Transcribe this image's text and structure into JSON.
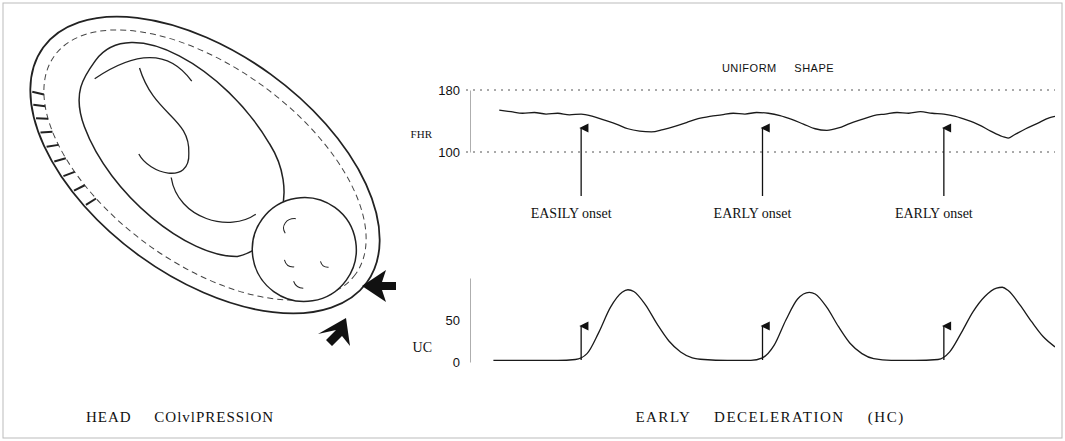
{
  "chart_data": [
    {
      "type": "line",
      "title": "UNIFORM SHAPE",
      "ylabel": "FHR",
      "color": "#1a1a1a",
      "x": [
        5,
        7,
        9,
        11,
        13,
        15,
        17,
        19,
        21,
        23,
        25,
        27,
        29,
        31,
        33,
        35,
        37,
        39,
        41,
        43,
        45,
        47,
        49,
        51,
        53,
        55,
        57,
        59,
        61,
        63,
        65,
        67,
        69,
        71,
        73,
        75,
        77,
        79,
        81,
        83,
        85,
        87,
        89,
        91,
        92,
        93,
        95,
        97,
        99,
        100
      ],
      "values": [
        154,
        152,
        150,
        151,
        149,
        150,
        148,
        149,
        146,
        141,
        136,
        130,
        127,
        126,
        129,
        133,
        138,
        143,
        146,
        148,
        150,
        149,
        151,
        150,
        147,
        142,
        136,
        130,
        128,
        131,
        137,
        142,
        147,
        149,
        151,
        150,
        152,
        150,
        149,
        146,
        141,
        135,
        127,
        120,
        118,
        122,
        130,
        137,
        144,
        146
      ],
      "xlim": [
        0,
        100
      ],
      "ylim": [
        100,
        180
      ],
      "yticks": [
        100,
        180
      ],
      "grid": true,
      "tick_labels": "y",
      "annotations": [
        {
          "text": "EASILY onset",
          "x": 19
        },
        {
          "text": "EARLY onset",
          "x": 50
        },
        {
          "text": "EARLY onset",
          "x": 81
        }
      ]
    },
    {
      "type": "line",
      "ylabel": "UC",
      "color": "#1a1a1a",
      "x": [
        4,
        5,
        10,
        15,
        18,
        20,
        22,
        24,
        26,
        27,
        28,
        30,
        32,
        34,
        36,
        38,
        40,
        44,
        48,
        50,
        52,
        54,
        56,
        58,
        59,
        61,
        63,
        65,
        67,
        69,
        72,
        76,
        80,
        82,
        84,
        86,
        88,
        90,
        91,
        92,
        94,
        96,
        98,
        100
      ],
      "values": [
        2,
        2,
        2,
        2,
        3,
        10,
        35,
        65,
        83,
        86,
        84,
        68,
        45,
        25,
        12,
        5,
        3,
        2,
        2,
        5,
        20,
        50,
        75,
        83,
        81,
        65,
        42,
        22,
        10,
        4,
        2,
        2,
        3,
        12,
        35,
        60,
        78,
        88,
        89,
        85,
        68,
        48,
        30,
        18
      ],
      "xlim": [
        0,
        100
      ],
      "ylim": [
        0,
        100
      ],
      "yticks": [
        0,
        50
      ],
      "grid": false,
      "tick_labels": "y"
    }
  ],
  "figure": {
    "caption": "EARLY DECELERATION (HC)",
    "illustration_label": "HEAD COlvlPRESSlON"
  }
}
